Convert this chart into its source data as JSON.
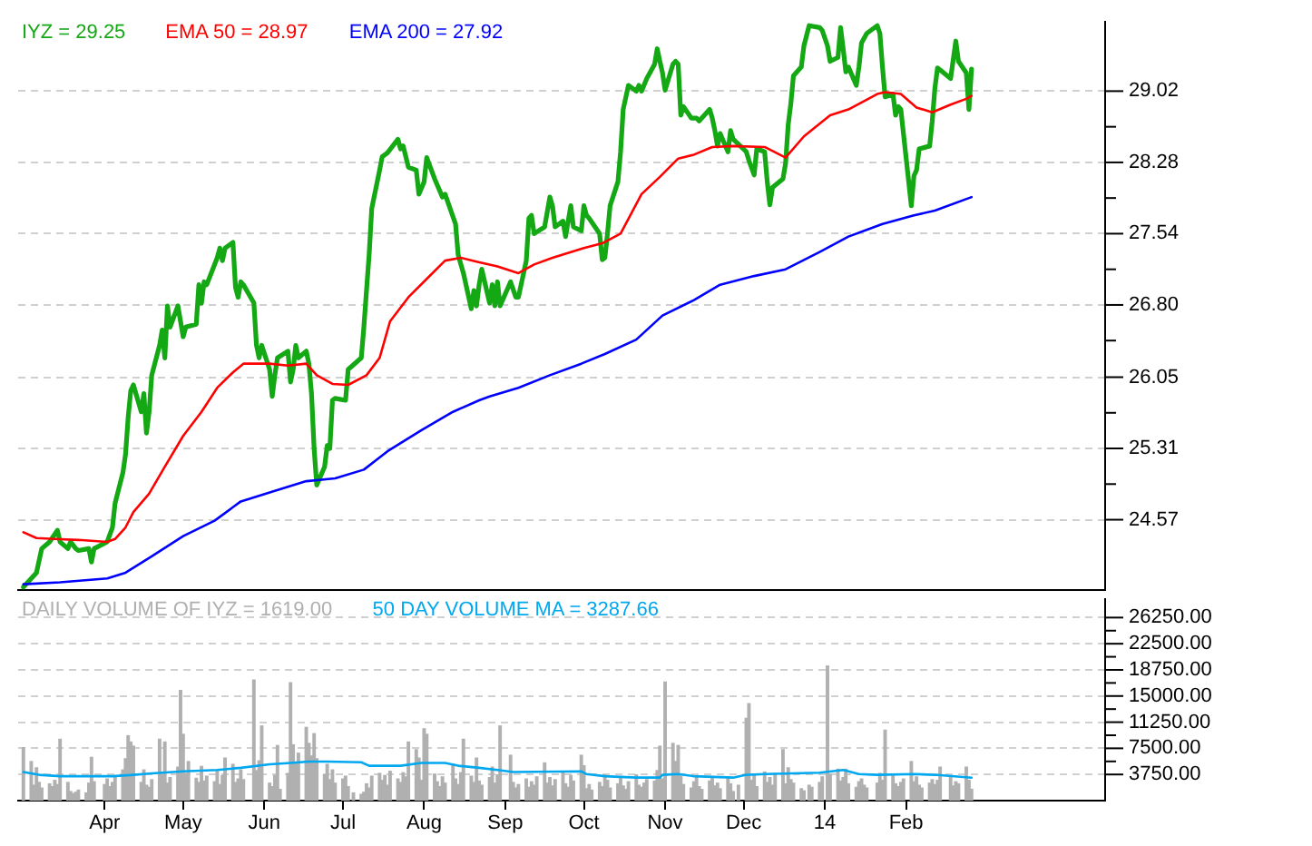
{
  "chart_data": [
    {
      "type": "line",
      "grid": "y",
      "tick_labels": "y",
      "xlim": [
        "2013-02-27",
        "2014-04-18"
      ],
      "ylim": [
        23.84,
        29.74
      ],
      "yticks": [
        24.57,
        {
          "value": 24.94,
          "label": null
        },
        25.31,
        {
          "value": 25.68,
          "label": null
        },
        26.05,
        {
          "value": 26.43,
          "label": null
        },
        {
          "value": 26.8,
          "label": "26.80"
        },
        {
          "value": 27.17,
          "label": null
        },
        27.54,
        {
          "value": 27.91,
          "label": null
        },
        28.28,
        {
          "value": 28.65,
          "label": null
        },
        29.02
      ],
      "series": [
        {
          "name": "IYZ = 29.25",
          "color": "#14a814",
          "x": [
            "2013-03-01",
            "2013-03-06",
            "2013-03-08",
            "2013-03-11",
            "2013-03-14",
            "2013-03-15",
            "2013-03-18",
            "2013-03-19",
            "2013-03-21",
            "2013-03-22",
            "2013-03-26",
            "2013-03-27",
            "2013-03-28",
            "2013-04-02",
            "2013-04-04",
            "2013-04-05",
            "2013-04-08",
            "2013-04-09",
            "2013-04-10",
            "2013-04-11",
            "2013-04-12",
            "2013-04-15",
            "2013-04-16",
            "2013-04-17",
            "2013-04-18",
            "2013-04-19",
            "2013-04-22",
            "2013-04-23",
            "2013-04-24",
            "2013-04-25",
            "2013-04-26",
            "2013-04-29",
            "2013-04-30",
            "2013-05-01",
            "2013-05-02",
            "2013-05-06",
            "2013-05-07",
            "2013-05-08",
            "2013-05-09",
            "2013-05-10",
            "2013-05-14",
            "2013-05-15",
            "2013-05-16",
            "2013-05-17",
            "2013-05-20",
            "2013-05-21",
            "2013-05-22",
            "2013-05-23",
            "2013-05-24",
            "2013-05-28",
            "2013-05-29",
            "2013-05-30",
            "2013-05-31",
            "2013-06-03",
            "2013-06-04",
            "2013-06-05",
            "2013-06-06",
            "2013-06-10",
            "2013-06-11",
            "2013-06-12",
            "2013-06-13",
            "2013-06-14",
            "2013-06-17",
            "2013-06-18",
            "2013-06-19",
            "2013-06-20",
            "2013-06-21",
            "2013-06-24",
            "2013-06-25",
            "2013-06-26",
            "2013-06-27",
            "2013-06-28",
            "2013-07-02",
            "2013-07-03",
            "2013-07-08",
            "2013-07-09",
            "2013-07-10",
            "2013-07-11",
            "2013-07-12",
            "2013-07-15",
            "2013-07-16",
            "2013-07-18",
            "2013-07-22",
            "2013-07-23",
            "2013-07-24",
            "2013-07-26",
            "2013-07-29",
            "2013-07-30",
            "2013-08-01",
            "2013-08-02",
            "2013-08-05",
            "2013-08-08",
            "2013-08-09",
            "2013-08-13",
            "2013-08-14",
            "2013-08-16",
            "2013-08-19",
            "2013-08-20",
            "2013-08-21",
            "2013-08-22",
            "2013-08-23",
            "2013-08-26",
            "2013-08-27",
            "2013-08-28",
            "2013-08-29",
            "2013-08-30",
            "2013-09-03",
            "2013-09-05",
            "2013-09-06",
            "2013-09-09",
            "2013-09-10",
            "2013-09-11",
            "2013-09-12",
            "2013-09-16",
            "2013-09-18",
            "2013-09-19",
            "2013-09-20",
            "2013-09-23",
            "2013-09-24",
            "2013-09-26",
            "2013-09-27",
            "2013-09-30",
            "2013-10-01",
            "2013-10-02",
            "2013-10-03",
            "2013-10-07",
            "2013-10-08",
            "2013-10-09",
            "2013-10-10",
            "2013-10-11",
            "2013-10-14",
            "2013-10-15",
            "2013-10-16",
            "2013-10-18",
            "2013-10-21",
            "2013-10-22",
            "2013-10-23",
            "2013-10-25",
            "2013-10-28",
            "2013-10-29",
            "2013-10-30",
            "2013-10-31",
            "2013-11-01",
            "2013-11-04",
            "2013-11-05",
            "2013-11-06",
            "2013-11-07",
            "2013-11-08",
            "2013-11-11",
            "2013-11-13",
            "2013-11-14",
            "2013-11-18",
            "2013-11-19",
            "2013-11-20",
            "2013-11-21",
            "2013-11-22",
            "2013-11-25",
            "2013-11-26",
            "2013-11-27",
            "2013-12-02",
            "2013-12-03",
            "2013-12-05",
            "2013-12-06",
            "2013-12-09",
            "2013-12-10",
            "2013-12-11",
            "2013-12-12",
            "2013-12-16",
            "2013-12-17",
            "2013-12-18",
            "2013-12-19",
            "2013-12-20",
            "2013-12-23",
            "2013-12-24",
            "2013-12-26",
            "2013-12-30",
            "2013-12-31",
            "2014-01-02",
            "2014-01-03",
            "2014-01-06",
            "2014-01-07",
            "2014-01-08",
            "2014-01-09",
            "2014-01-10",
            "2014-01-13",
            "2014-01-14",
            "2014-01-15",
            "2014-01-17",
            "2014-01-21",
            "2014-01-22",
            "2014-01-23",
            "2014-01-24",
            "2014-01-27",
            "2014-01-28",
            "2014-01-29",
            "2014-01-30",
            "2014-01-31",
            "2014-02-03",
            "2014-02-04",
            "2014-02-05",
            "2014-02-06",
            "2014-02-10",
            "2014-02-11",
            "2014-02-12",
            "2014-02-13",
            "2014-02-14",
            "2014-02-18",
            "2014-02-20",
            "2014-02-21",
            "2014-02-24",
            "2014-02-25",
            "2014-02-26"
          ],
          "values": [
            23.87,
            24.02,
            24.27,
            24.34,
            24.46,
            24.34,
            24.27,
            24.34,
            24.27,
            24.25,
            24.27,
            24.13,
            24.27,
            24.34,
            24.49,
            24.74,
            25.06,
            25.25,
            25.63,
            25.91,
            25.97,
            25.69,
            25.88,
            25.47,
            25.69,
            26.07,
            26.38,
            26.54,
            26.25,
            26.79,
            26.57,
            26.79,
            26.63,
            26.47,
            26.57,
            26.6,
            27.01,
            26.82,
            27.04,
            27.01,
            27.29,
            27.39,
            27.26,
            27.39,
            27.45,
            26.98,
            26.88,
            27.04,
            27.01,
            26.82,
            26.38,
            26.25,
            26.38,
            26.13,
            25.85,
            26.07,
            26.25,
            26.32,
            26.0,
            26.13,
            26.38,
            26.25,
            26.32,
            26.19,
            25.88,
            25.31,
            24.93,
            25.12,
            25.34,
            25.31,
            25.81,
            25.83,
            25.81,
            26.13,
            26.25,
            26.57,
            26.95,
            27.32,
            27.8,
            28.2,
            28.34,
            28.38,
            28.52,
            28.42,
            28.45,
            28.23,
            28.2,
            27.95,
            28.08,
            28.33,
            28.11,
            27.92,
            27.95,
            27.64,
            27.32,
            27.13,
            26.76,
            26.95,
            26.79,
            27.01,
            27.17,
            26.82,
            27.01,
            26.79,
            27.04,
            26.79,
            27.04,
            26.88,
            26.88,
            27.26,
            27.7,
            27.73,
            27.54,
            27.61,
            27.92,
            27.83,
            27.61,
            27.67,
            27.51,
            27.83,
            27.61,
            27.57,
            27.83,
            27.73,
            27.7,
            27.54,
            27.27,
            27.29,
            27.54,
            27.83,
            28.08,
            28.39,
            28.83,
            29.08,
            29.02,
            29.08,
            29.02,
            29.15,
            29.3,
            29.46,
            29.33,
            29.21,
            29.03,
            29.3,
            29.33,
            29.3,
            28.77,
            28.86,
            28.74,
            28.74,
            28.71,
            28.83,
            28.74,
            28.61,
            28.45,
            28.58,
            28.39,
            28.61,
            28.52,
            28.39,
            28.3,
            28.15,
            28.42,
            28.39,
            28.08,
            27.84,
            28.02,
            28.11,
            28.27,
            28.67,
            28.89,
            29.18,
            29.27,
            29.49,
            29.7,
            29.68,
            29.65,
            29.49,
            29.33,
            29.37,
            29.68,
            29.46,
            29.22,
            29.27,
            29.08,
            29.27,
            29.52,
            29.62,
            29.7,
            29.62,
            29.27,
            28.96,
            28.99,
            28.77,
            28.86,
            28.83,
            28.58,
            27.83,
            28.14,
            28.2,
            28.42,
            28.45,
            28.71,
            29.05,
            29.26,
            29.24,
            29.15,
            29.54,
            29.33,
            29.21,
            28.83,
            29.25
          ]
        },
        {
          "name": "EMA 50 = 28.97",
          "color": "#ff0000",
          "x": [
            "2013-03-01",
            "2013-03-06",
            "2013-03-13",
            "2013-03-22",
            "2013-04-02",
            "2013-04-05",
            "2013-04-09",
            "2013-04-12",
            "2013-04-18",
            "2013-04-24",
            "2013-05-01",
            "2013-05-08",
            "2013-05-14",
            "2013-05-20",
            "2013-05-24",
            "2013-06-03",
            "2013-06-10",
            "2013-06-17",
            "2013-06-21",
            "2013-06-27",
            "2013-07-03",
            "2013-07-10",
            "2013-07-15",
            "2013-07-19",
            "2013-07-26",
            "2013-08-02",
            "2013-08-09",
            "2013-08-15",
            "2013-08-21",
            "2013-08-29",
            "2013-09-06",
            "2013-09-12",
            "2013-09-19",
            "2013-10-01",
            "2013-10-08",
            "2013-10-15",
            "2013-10-23",
            "2013-10-30",
            "2013-11-06",
            "2013-11-12",
            "2013-11-19",
            "2013-11-27",
            "2013-12-09",
            "2013-12-17",
            "2013-12-24",
            "2014-01-03",
            "2014-01-10",
            "2014-01-21",
            "2014-01-24",
            "2014-01-30",
            "2014-02-05",
            "2014-02-11",
            "2014-02-18",
            "2014-02-24",
            "2014-02-26"
          ],
          "values": [
            24.44,
            24.38,
            24.37,
            24.36,
            24.34,
            24.37,
            24.49,
            24.65,
            24.84,
            25.12,
            25.44,
            25.69,
            25.94,
            26.1,
            26.19,
            26.19,
            26.17,
            26.19,
            26.07,
            25.98,
            25.97,
            26.07,
            26.25,
            26.63,
            26.88,
            27.07,
            27.26,
            27.29,
            27.25,
            27.2,
            27.13,
            27.22,
            27.29,
            27.39,
            27.44,
            27.54,
            27.95,
            28.13,
            28.32,
            28.36,
            28.44,
            28.45,
            28.44,
            28.33,
            28.55,
            28.77,
            28.83,
            28.99,
            29.01,
            28.99,
            28.85,
            28.8,
            28.88,
            28.94,
            28.97
          ]
        },
        {
          "name": "EMA 200 = 27.92",
          "color": "#0000ff",
          "x": [
            "2013-03-01",
            "2013-03-15",
            "2013-04-02",
            "2013-04-09",
            "2013-04-19",
            "2013-05-01",
            "2013-05-13",
            "2013-05-23",
            "2013-06-05",
            "2013-06-17",
            "2013-06-28",
            "2013-07-09",
            "2013-07-18",
            "2013-07-31",
            "2013-08-12",
            "2013-08-22",
            "2013-08-26",
            "2013-09-06",
            "2013-09-18",
            "2013-09-30",
            "2013-10-09",
            "2013-10-21",
            "2013-10-31",
            "2013-11-12",
            "2013-11-22",
            "2013-12-05",
            "2013-12-17",
            "2013-12-30",
            "2014-01-10",
            "2014-01-23",
            "2014-02-04",
            "2014-02-12",
            "2014-02-26"
          ],
          "values": [
            23.9,
            23.92,
            23.96,
            24.02,
            24.19,
            24.4,
            24.56,
            24.76,
            24.87,
            24.97,
            25.0,
            25.09,
            25.28,
            25.5,
            25.69,
            25.81,
            25.85,
            25.94,
            26.07,
            26.19,
            26.29,
            26.44,
            26.69,
            26.85,
            27.01,
            27.1,
            27.17,
            27.35,
            27.51,
            27.64,
            27.73,
            27.78,
            27.92
          ]
        }
      ]
    },
    {
      "type": "bar",
      "grid": "y",
      "xlim": [
        "2013-02-27",
        "2014-04-18"
      ],
      "ylim": [
        0,
        28900
      ],
      "xticks": [
        {
          "value": "2013-04-01",
          "label": "Apr"
        },
        {
          "value": "2013-05-01",
          "label": "May"
        },
        {
          "value": "2013-06-01",
          "label": "Jun"
        },
        {
          "value": "2013-07-01",
          "label": "Jul"
        },
        {
          "value": "2013-08-01",
          "label": "Aug"
        },
        {
          "value": "2013-09-01",
          "label": "Sep"
        },
        {
          "value": "2013-10-01",
          "label": "Oct"
        },
        {
          "value": "2013-11-01",
          "label": "Nov"
        },
        {
          "value": "2013-12-01",
          "label": "Dec"
        },
        {
          "value": "2014-01-01",
          "label": "14"
        },
        {
          "value": "2014-02-01",
          "label": "Feb"
        }
      ],
      "yticks": [
        {
          "value": 3750,
          "label": "3750.00"
        },
        {
          "value": 5625,
          "label": null
        },
        {
          "value": 7500,
          "label": "7500.00"
        },
        {
          "value": 9375,
          "label": null
        },
        {
          "value": 11250,
          "label": "11250.00"
        },
        {
          "value": 13125,
          "label": null
        },
        {
          "value": 15000,
          "label": "15000.00"
        },
        {
          "value": 16875,
          "label": null
        },
        {
          "value": 18750,
          "label": "18750.00"
        },
        {
          "value": 20625,
          "label": null
        },
        {
          "value": 22500,
          "label": "22500.00"
        },
        {
          "value": 24375,
          "label": null
        },
        {
          "value": 26250,
          "label": "26250.00"
        }
      ],
      "series": [
        {
          "name": "DAILY VOLUME OF IYZ = 1619.00",
          "color": "#b0b0b0",
          "x": [
            "2013-03-01",
            "2013-03-04",
            "2013-03-05",
            "2013-03-06",
            "2013-03-07",
            "2013-03-08",
            "2013-03-11",
            "2013-03-12",
            "2013-03-13",
            "2013-03-14",
            "2013-03-15",
            "2013-03-18",
            "2013-03-19",
            "2013-03-20",
            "2013-03-21",
            "2013-03-22",
            "2013-03-25",
            "2013-03-26",
            "2013-03-27",
            "2013-03-28",
            "2013-04-01",
            "2013-04-02",
            "2013-04-03",
            "2013-04-04",
            "2013-04-05",
            "2013-04-08",
            "2013-04-09",
            "2013-04-10",
            "2013-04-11",
            "2013-04-12",
            "2013-04-15",
            "2013-04-16",
            "2013-04-17",
            "2013-04-18",
            "2013-04-19",
            "2013-04-22",
            "2013-04-23",
            "2013-04-24",
            "2013-04-25",
            "2013-04-26",
            "2013-04-29",
            "2013-04-30",
            "2013-05-01",
            "2013-05-02",
            "2013-05-03",
            "2013-05-06",
            "2013-05-07",
            "2013-05-08",
            "2013-05-09",
            "2013-05-10",
            "2013-05-13",
            "2013-05-14",
            "2013-05-15",
            "2013-05-16",
            "2013-05-17",
            "2013-05-20",
            "2013-05-21",
            "2013-05-22",
            "2013-05-23",
            "2013-05-24",
            "2013-05-28",
            "2013-05-29",
            "2013-05-30",
            "2013-05-31",
            "2013-06-03",
            "2013-06-04",
            "2013-06-05",
            "2013-06-06",
            "2013-06-07",
            "2013-06-10",
            "2013-06-11",
            "2013-06-12",
            "2013-06-13",
            "2013-06-14",
            "2013-06-17",
            "2013-06-18",
            "2013-06-19",
            "2013-06-20",
            "2013-06-21",
            "2013-06-24",
            "2013-06-25",
            "2013-06-26",
            "2013-06-27",
            "2013-06-28",
            "2013-07-01",
            "2013-07-02",
            "2013-07-03",
            "2013-07-05",
            "2013-07-08",
            "2013-07-09",
            "2013-07-10",
            "2013-07-11",
            "2013-07-12",
            "2013-07-15",
            "2013-07-16",
            "2013-07-17",
            "2013-07-18",
            "2013-07-19",
            "2013-07-22",
            "2013-07-23",
            "2013-07-24",
            "2013-07-25",
            "2013-07-26",
            "2013-07-29",
            "2013-07-30",
            "2013-07-31",
            "2013-08-01",
            "2013-08-02",
            "2013-08-05",
            "2013-08-06",
            "2013-08-07",
            "2013-08-08",
            "2013-08-09",
            "2013-08-12",
            "2013-08-13",
            "2013-08-14",
            "2013-08-15",
            "2013-08-16",
            "2013-08-19",
            "2013-08-20",
            "2013-08-21",
            "2013-08-22",
            "2013-08-23",
            "2013-08-26",
            "2013-08-27",
            "2013-08-28",
            "2013-08-29",
            "2013-08-30",
            "2013-09-03",
            "2013-09-04",
            "2013-09-05",
            "2013-09-06",
            "2013-09-09",
            "2013-09-10",
            "2013-09-11",
            "2013-09-12",
            "2013-09-13",
            "2013-09-16",
            "2013-09-17",
            "2013-09-18",
            "2013-09-19",
            "2013-09-20",
            "2013-09-23",
            "2013-09-24",
            "2013-09-25",
            "2013-09-26",
            "2013-09-27",
            "2013-09-30",
            "2013-10-01",
            "2013-10-02",
            "2013-10-03",
            "2013-10-04",
            "2013-10-07",
            "2013-10-08",
            "2013-10-09",
            "2013-10-10",
            "2013-10-11",
            "2013-10-14",
            "2013-10-15",
            "2013-10-16",
            "2013-10-17",
            "2013-10-18",
            "2013-10-21",
            "2013-10-22",
            "2013-10-23",
            "2013-10-24",
            "2013-10-25",
            "2013-10-28",
            "2013-10-29",
            "2013-10-30",
            "2013-10-31",
            "2013-11-01",
            "2013-11-04",
            "2013-11-05",
            "2013-11-06",
            "2013-11-07",
            "2013-11-08",
            "2013-11-11",
            "2013-11-12",
            "2013-11-13",
            "2013-11-14",
            "2013-11-15",
            "2013-11-18",
            "2013-11-19",
            "2013-11-20",
            "2013-11-21",
            "2013-11-22",
            "2013-11-25",
            "2013-11-26",
            "2013-11-27",
            "2013-11-29",
            "2013-12-02",
            "2013-12-03",
            "2013-12-04",
            "2013-12-05",
            "2013-12-06",
            "2013-12-09",
            "2013-12-10",
            "2013-12-11",
            "2013-12-12",
            "2013-12-13",
            "2013-12-16",
            "2013-12-17",
            "2013-12-18",
            "2013-12-19",
            "2013-12-20",
            "2013-12-23",
            "2013-12-24",
            "2013-12-26",
            "2013-12-27",
            "2013-12-30",
            "2013-12-31",
            "2014-01-02",
            "2014-01-03",
            "2014-01-06",
            "2014-01-07",
            "2014-01-08",
            "2014-01-09",
            "2014-01-10",
            "2014-01-13",
            "2014-01-14",
            "2014-01-15",
            "2014-01-16",
            "2014-01-17",
            "2014-01-21",
            "2014-01-22",
            "2014-01-23",
            "2014-01-24",
            "2014-01-27",
            "2014-01-28",
            "2014-01-29",
            "2014-01-30",
            "2014-01-31",
            "2014-02-03",
            "2014-02-04",
            "2014-02-05",
            "2014-02-06",
            "2014-02-07",
            "2014-02-10",
            "2014-02-11",
            "2014-02-12",
            "2014-02-13",
            "2014-02-14",
            "2014-02-18",
            "2014-02-19",
            "2014-02-20",
            "2014-02-21",
            "2014-02-24",
            "2014-02-25",
            "2014-02-26"
          ],
          "values": [
            7600,
            5600,
            2200,
            4700,
            2600,
            1800,
            2400,
            2000,
            2900,
            2300,
            8800,
            2600,
            1300,
            1000,
            1200,
            1500,
            1100,
            2500,
            6200,
            2700,
            2300,
            3100,
            2000,
            2600,
            3300,
            4400,
            6000,
            9300,
            8400,
            7800,
            2600,
            4400,
            2200,
            1900,
            3000,
            8800,
            3700,
            8400,
            2500,
            3300,
            4800,
            15800,
            9500,
            3900,
            5600,
            3200,
            2600,
            4900,
            2800,
            3500,
            2700,
            4200,
            2300,
            3600,
            6100,
            5200,
            2600,
            3100,
            4400,
            3000,
            17300,
            4300,
            5700,
            10700,
            2500,
            2000,
            3600,
            7900,
            1600,
            3900,
            16900,
            8000,
            5500,
            6800,
            10500,
            8200,
            6400,
            9600,
            6000,
            3700,
            5200,
            3000,
            4400,
            2500,
            3100,
            3500,
            2000,
            1100,
            900,
            1200,
            2400,
            1800,
            3500,
            3900,
            2900,
            3600,
            2200,
            4200,
            3100,
            2600,
            4000,
            3400,
            8400,
            7300,
            6100,
            2900,
            10300,
            9500,
            3800,
            2700,
            2000,
            3400,
            2500,
            5200,
            3100,
            2300,
            4000,
            8800,
            3500,
            2600,
            6100,
            2800,
            2200,
            3300,
            4800,
            2500,
            3700,
            10700,
            6500,
            2600,
            1800,
            2300,
            3100,
            1900,
            2700,
            2200,
            3400,
            5400,
            2500,
            3300,
            2100,
            3000,
            4100,
            2400,
            1900,
            3600,
            2800,
            6500,
            5000,
            1700,
            2300,
            1500,
            2600,
            2000,
            3700,
            2900,
            1800,
            2400,
            3200,
            2100,
            1600,
            2700,
            3700,
            2200,
            1900,
            2500,
            3000,
            2800,
            4300,
            7800,
            3100,
            17000,
            8200,
            5600,
            7900,
            3500,
            2300,
            1800,
            2700,
            3400,
            2000,
            1600,
            2800,
            3300,
            2100,
            2500,
            1700,
            3200,
            2400,
            1300,
            2200,
            11800,
            13900,
            2900,
            3600,
            2000,
            4100,
            2600,
            3300,
            2200,
            3900,
            7300,
            2400,
            4700,
            3000,
            2500,
            1700,
            1400,
            2200,
            1900,
            2600,
            3400,
            19300,
            3800,
            4500,
            2800,
            3300,
            4500,
            2400,
            1900,
            2700,
            3100,
            2200,
            1800,
            2500,
            3900,
            2900,
            10100,
            3600,
            2400,
            2000,
            2600,
            3100,
            5600,
            2700,
            3400,
            2200,
            1800,
            2500,
            3000,
            2300,
            2900,
            4800,
            3300,
            2100,
            2700,
            2400,
            4800,
            2900,
            1619
          ]
        },
        {
          "name": "50 DAY VOLUME MA = 3287.66",
          "type": "line",
          "color": "#00a8f0",
          "x": [
            "2013-03-01",
            "2013-03-07",
            "2013-03-15",
            "2013-04-04",
            "2013-04-12",
            "2013-04-19",
            "2013-05-01",
            "2013-05-14",
            "2013-05-23",
            "2013-06-03",
            "2013-06-11",
            "2013-06-18",
            "2013-06-25",
            "2013-07-08",
            "2013-07-11",
            "2013-07-23",
            "2013-07-31",
            "2013-08-09",
            "2013-08-14",
            "2013-08-22",
            "2013-08-29",
            "2013-09-04",
            "2013-09-30",
            "2013-10-02",
            "2013-10-09",
            "2013-10-21",
            "2013-10-30",
            "2013-10-31",
            "2013-11-06",
            "2013-11-12",
            "2013-11-27",
            "2013-12-02",
            "2013-12-09",
            "2013-12-30",
            "2014-01-08",
            "2014-01-14",
            "2014-01-21",
            "2014-02-04",
            "2014-02-12",
            "2014-02-26"
          ],
          "values": [
            4100,
            3700,
            3500,
            3500,
            3700,
            3900,
            4200,
            4400,
            4700,
            5200,
            5400,
            5600,
            5600,
            5500,
            5000,
            5000,
            5400,
            5400,
            5000,
            4700,
            4400,
            4100,
            4200,
            3800,
            3500,
            3300,
            3300,
            3700,
            3800,
            3500,
            3300,
            3700,
            3800,
            4000,
            4400,
            3800,
            3700,
            3800,
            3700,
            3287.66
          ]
        }
      ]
    }
  ]
}
